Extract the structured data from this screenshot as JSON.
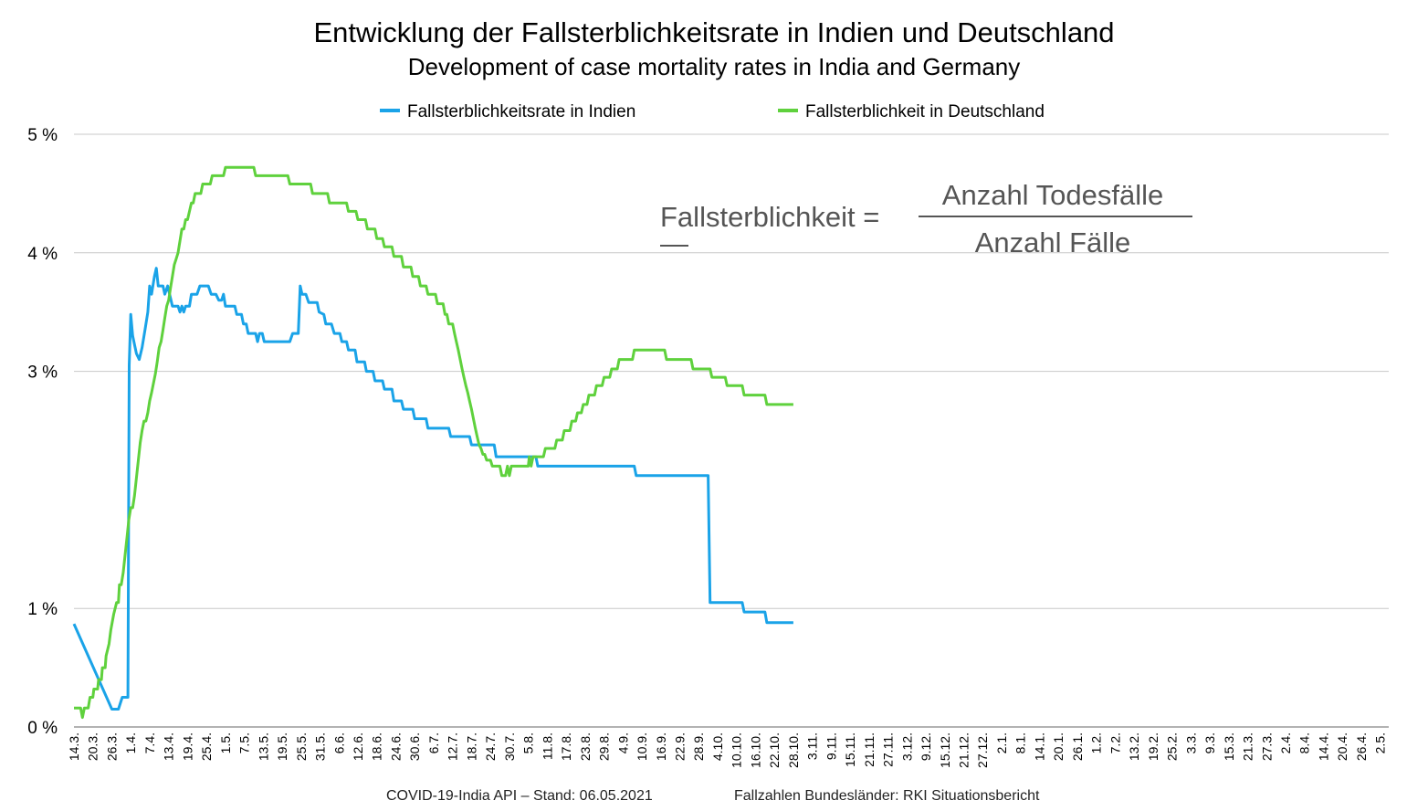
{
  "title": "Entwicklung der Fallsterblichkeitsrate in Indien und Deutschland",
  "subtitle": "Development of case mortality rates in India and Germany",
  "legend": [
    {
      "label": "Fallsterblichkeitsrate in Indien",
      "color": "#1aa3e8"
    },
    {
      "label": "Fallsterblichkeit in Deutschland",
      "color": "#5fd13d"
    }
  ],
  "formula": {
    "lhs": "Fallsterblichkeit =",
    "dash": "—",
    "numerator": "Anzahl Todesfälle",
    "denominator": "Anzahl Fälle"
  },
  "footer": {
    "left": "COVID-19-India API – Stand: 06.05.2021",
    "right": "Fallzahlen Bundesländer: RKI Situationsbericht"
  },
  "chart_data": {
    "type": "line",
    "title": "Entwicklung der Fallsterblichkeitsrate in Indien und Deutschland",
    "subtitle": "Development of case mortality rates in India and Germany",
    "xlabel": "",
    "ylabel": "",
    "ylim": [
      0,
      5
    ],
    "yticks": [
      0,
      1,
      3,
      4,
      5
    ],
    "ytick_labels": [
      "0 %",
      "1 %",
      "3 %",
      "4 %",
      "5 %"
    ],
    "grid": true,
    "legend_position": "top",
    "x_ticks": [
      "14.3.",
      "20.3.",
      "26.3.",
      "1.4.",
      "7.4.",
      "13.4.",
      "19.4.",
      "25.4.",
      "1.5.",
      "7.5.",
      "13.5.",
      "19.5.",
      "25.5.",
      "31.5.",
      "6.6.",
      "12.6.",
      "18.6.",
      "24.6.",
      "30.6.",
      "6.7.",
      "12.7.",
      "18.7.",
      "24.7.",
      "30.7.",
      "5.8.",
      "11.8.",
      "17.8.",
      "23.8.",
      "29.8.",
      "4.9.",
      "10.9.",
      "16.9.",
      "22.9.",
      "28.9.",
      "4.10.",
      "10.10.",
      "16.10.",
      "22.10.",
      "28.10.",
      "3.11.",
      "9.11.",
      "15.11.",
      "21.11.",
      "27.11.",
      "3.12.",
      "9.12.",
      "15.12.",
      "21.12.",
      "27.12.",
      "2.1.",
      "8.1.",
      "14.1.",
      "20.1.",
      "26.1.",
      "1.2.",
      "7.2.",
      "13.2.",
      "19.2.",
      "25.2.",
      "3.3.",
      "9.3.",
      "15.3.",
      "21.3.",
      "27.3.",
      "2.4.",
      "8.4.",
      "14.4.",
      "20.4.",
      "26.4.",
      "2.5."
    ],
    "series": [
      {
        "name": "Fallsterblichkeitsrate in Indien",
        "color": "#1aa3e8",
        "points": [
          [
            0,
            0.87
          ],
          [
            2,
            0.15
          ],
          [
            2.35,
            0.15
          ],
          [
            2.55,
            0.25
          ],
          [
            2.85,
            0.25
          ],
          [
            2.92,
            3.05
          ],
          [
            3.0,
            3.48
          ],
          [
            3.1,
            3.3
          ],
          [
            3.3,
            3.15
          ],
          [
            3.45,
            3.1
          ],
          [
            3.6,
            3.2
          ],
          [
            3.75,
            3.35
          ],
          [
            3.9,
            3.5
          ],
          [
            4.0,
            3.72
          ],
          [
            4.1,
            3.65
          ],
          [
            4.25,
            3.8
          ],
          [
            4.35,
            3.87
          ],
          [
            4.45,
            3.72
          ],
          [
            4.7,
            3.72
          ],
          [
            4.8,
            3.65
          ],
          [
            4.95,
            3.72
          ],
          [
            5.1,
            3.62
          ],
          [
            5.2,
            3.55
          ],
          [
            5.5,
            3.55
          ],
          [
            5.6,
            3.5
          ],
          [
            5.7,
            3.55
          ],
          [
            5.8,
            3.5
          ],
          [
            5.9,
            3.55
          ],
          [
            6.1,
            3.55
          ],
          [
            6.2,
            3.65
          ],
          [
            6.5,
            3.65
          ],
          [
            6.65,
            3.72
          ],
          [
            7.1,
            3.72
          ],
          [
            7.25,
            3.65
          ],
          [
            7.5,
            3.65
          ],
          [
            7.65,
            3.6
          ],
          [
            7.8,
            3.6
          ],
          [
            7.9,
            3.65
          ],
          [
            8.0,
            3.55
          ],
          [
            8.5,
            3.55
          ],
          [
            8.6,
            3.48
          ],
          [
            8.85,
            3.48
          ],
          [
            8.95,
            3.4
          ],
          [
            9.1,
            3.4
          ],
          [
            9.2,
            3.32
          ],
          [
            9.6,
            3.32
          ],
          [
            9.7,
            3.25
          ],
          [
            9.8,
            3.32
          ],
          [
            9.95,
            3.32
          ],
          [
            10.05,
            3.25
          ],
          [
            11.4,
            3.25
          ],
          [
            11.55,
            3.32
          ],
          [
            11.85,
            3.32
          ],
          [
            11.95,
            3.72
          ],
          [
            12.05,
            3.65
          ],
          [
            12.25,
            3.65
          ],
          [
            12.4,
            3.58
          ],
          [
            12.85,
            3.58
          ],
          [
            12.95,
            3.5
          ],
          [
            13.2,
            3.48
          ],
          [
            13.3,
            3.4
          ],
          [
            13.6,
            3.4
          ],
          [
            13.75,
            3.32
          ],
          [
            14.05,
            3.32
          ],
          [
            14.15,
            3.25
          ],
          [
            14.4,
            3.25
          ],
          [
            14.5,
            3.18
          ],
          [
            14.85,
            3.18
          ],
          [
            14.95,
            3.08
          ],
          [
            15.35,
            3.08
          ],
          [
            15.45,
            3.0
          ],
          [
            15.8,
            3.0
          ],
          [
            15.9,
            2.92
          ],
          [
            16.3,
            2.92
          ],
          [
            16.4,
            2.85
          ],
          [
            16.8,
            2.85
          ],
          [
            16.9,
            2.75
          ],
          [
            17.3,
            2.75
          ],
          [
            17.4,
            2.68
          ],
          [
            17.9,
            2.68
          ],
          [
            18.0,
            2.6
          ],
          [
            18.6,
            2.6
          ],
          [
            18.7,
            2.52
          ],
          [
            19.8,
            2.52
          ],
          [
            19.9,
            2.45
          ],
          [
            20.9,
            2.45
          ],
          [
            21.0,
            2.38
          ],
          [
            22.2,
            2.38
          ],
          [
            22.3,
            2.28
          ],
          [
            24.4,
            2.28
          ],
          [
            24.5,
            2.2
          ],
          [
            29.6,
            2.2
          ],
          [
            29.7,
            2.12
          ],
          [
            33.5,
            2.12
          ],
          [
            33.6,
            1.05
          ],
          [
            35.3,
            1.05
          ],
          [
            35.4,
            0.97
          ],
          [
            36.5,
            0.97
          ],
          [
            36.6,
            0.88
          ],
          [
            38.0,
            0.88
          ]
        ]
      },
      {
        "name": "Fallsterblichkeit in Deutschland",
        "color": "#5fd13d",
        "points": [
          [
            0,
            0.16
          ],
          [
            0.35,
            0.16
          ],
          [
            0.45,
            0.08
          ],
          [
            0.55,
            0.16
          ],
          [
            0.75,
            0.16
          ],
          [
            0.85,
            0.25
          ],
          [
            1.0,
            0.25
          ],
          [
            1.05,
            0.32
          ],
          [
            1.25,
            0.32
          ],
          [
            1.3,
            0.4
          ],
          [
            1.45,
            0.4
          ],
          [
            1.5,
            0.5
          ],
          [
            1.65,
            0.5
          ],
          [
            1.7,
            0.6
          ],
          [
            1.85,
            0.7
          ],
          [
            1.95,
            0.82
          ],
          [
            2.1,
            0.95
          ],
          [
            2.25,
            1.05
          ],
          [
            2.35,
            1.05
          ],
          [
            2.4,
            1.2
          ],
          [
            2.5,
            1.2
          ],
          [
            2.6,
            1.3
          ],
          [
            2.7,
            1.45
          ],
          [
            2.8,
            1.6
          ],
          [
            2.9,
            1.75
          ],
          [
            3.0,
            1.85
          ],
          [
            3.1,
            1.85
          ],
          [
            3.2,
            1.95
          ],
          [
            3.3,
            2.1
          ],
          [
            3.4,
            2.25
          ],
          [
            3.5,
            2.4
          ],
          [
            3.6,
            2.5
          ],
          [
            3.7,
            2.58
          ],
          [
            3.8,
            2.58
          ],
          [
            3.9,
            2.65
          ],
          [
            4.0,
            2.75
          ],
          [
            4.1,
            2.82
          ],
          [
            4.2,
            2.9
          ],
          [
            4.3,
            2.98
          ],
          [
            4.4,
            3.08
          ],
          [
            4.5,
            3.2
          ],
          [
            4.6,
            3.25
          ],
          [
            4.7,
            3.35
          ],
          [
            4.8,
            3.45
          ],
          [
            4.9,
            3.55
          ],
          [
            5.0,
            3.6
          ],
          [
            5.1,
            3.7
          ],
          [
            5.2,
            3.8
          ],
          [
            5.3,
            3.9
          ],
          [
            5.4,
            3.95
          ],
          [
            5.5,
            4.0
          ],
          [
            5.6,
            4.1
          ],
          [
            5.7,
            4.2
          ],
          [
            5.8,
            4.2
          ],
          [
            5.9,
            4.28
          ],
          [
            6.0,
            4.28
          ],
          [
            6.1,
            4.35
          ],
          [
            6.2,
            4.42
          ],
          [
            6.3,
            4.42
          ],
          [
            6.4,
            4.5
          ],
          [
            6.7,
            4.5
          ],
          [
            6.8,
            4.58
          ],
          [
            7.2,
            4.58
          ],
          [
            7.3,
            4.65
          ],
          [
            7.9,
            4.65
          ],
          [
            8.0,
            4.72
          ],
          [
            9.5,
            4.72
          ],
          [
            9.6,
            4.65
          ],
          [
            11.3,
            4.65
          ],
          [
            11.4,
            4.58
          ],
          [
            12.5,
            4.58
          ],
          [
            12.6,
            4.5
          ],
          [
            13.4,
            4.5
          ],
          [
            13.5,
            4.42
          ],
          [
            14.4,
            4.42
          ],
          [
            14.5,
            4.35
          ],
          [
            14.9,
            4.35
          ],
          [
            15.0,
            4.28
          ],
          [
            15.4,
            4.28
          ],
          [
            15.5,
            4.2
          ],
          [
            15.9,
            4.2
          ],
          [
            16.0,
            4.12
          ],
          [
            16.3,
            4.12
          ],
          [
            16.4,
            4.05
          ],
          [
            16.8,
            4.05
          ],
          [
            16.9,
            3.97
          ],
          [
            17.3,
            3.97
          ],
          [
            17.4,
            3.88
          ],
          [
            17.8,
            3.88
          ],
          [
            17.9,
            3.8
          ],
          [
            18.2,
            3.8
          ],
          [
            18.3,
            3.72
          ],
          [
            18.6,
            3.72
          ],
          [
            18.7,
            3.65
          ],
          [
            19.1,
            3.65
          ],
          [
            19.2,
            3.57
          ],
          [
            19.5,
            3.57
          ],
          [
            19.6,
            3.48
          ],
          [
            19.7,
            3.48
          ],
          [
            19.8,
            3.4
          ],
          [
            20.0,
            3.4
          ],
          [
            20.1,
            3.32
          ],
          [
            20.2,
            3.25
          ],
          [
            20.3,
            3.18
          ],
          [
            20.4,
            3.1
          ],
          [
            20.5,
            3.02
          ],
          [
            20.6,
            2.95
          ],
          [
            20.7,
            2.88
          ],
          [
            20.8,
            2.82
          ],
          [
            20.9,
            2.75
          ],
          [
            21.0,
            2.68
          ],
          [
            21.1,
            2.6
          ],
          [
            21.2,
            2.52
          ],
          [
            21.3,
            2.45
          ],
          [
            21.4,
            2.38
          ],
          [
            21.5,
            2.35
          ],
          [
            21.6,
            2.3
          ],
          [
            21.7,
            2.3
          ],
          [
            21.8,
            2.25
          ],
          [
            22.0,
            2.25
          ],
          [
            22.1,
            2.2
          ],
          [
            22.5,
            2.2
          ],
          [
            22.6,
            2.12
          ],
          [
            22.8,
            2.12
          ],
          [
            22.9,
            2.2
          ],
          [
            23.0,
            2.12
          ],
          [
            23.1,
            2.2
          ],
          [
            24.0,
            2.2
          ],
          [
            24.05,
            2.28
          ],
          [
            24.15,
            2.2
          ],
          [
            24.25,
            2.28
          ],
          [
            24.8,
            2.28
          ],
          [
            24.9,
            2.35
          ],
          [
            25.4,
            2.35
          ],
          [
            25.5,
            2.42
          ],
          [
            25.8,
            2.42
          ],
          [
            25.9,
            2.5
          ],
          [
            26.2,
            2.5
          ],
          [
            26.3,
            2.58
          ],
          [
            26.5,
            2.58
          ],
          [
            26.6,
            2.65
          ],
          [
            26.8,
            2.65
          ],
          [
            26.9,
            2.72
          ],
          [
            27.1,
            2.72
          ],
          [
            27.2,
            2.8
          ],
          [
            27.5,
            2.8
          ],
          [
            27.6,
            2.88
          ],
          [
            27.9,
            2.88
          ],
          [
            28.0,
            2.95
          ],
          [
            28.3,
            2.95
          ],
          [
            28.4,
            3.02
          ],
          [
            28.7,
            3.02
          ],
          [
            28.8,
            3.1
          ],
          [
            29.5,
            3.1
          ],
          [
            29.6,
            3.18
          ],
          [
            31.2,
            3.18
          ],
          [
            31.3,
            3.1
          ],
          [
            32.6,
            3.1
          ],
          [
            32.7,
            3.02
          ],
          [
            33.6,
            3.02
          ],
          [
            33.7,
            2.95
          ],
          [
            34.4,
            2.95
          ],
          [
            34.5,
            2.88
          ],
          [
            35.3,
            2.88
          ],
          [
            35.4,
            2.8
          ],
          [
            36.5,
            2.8
          ],
          [
            36.6,
            2.72
          ],
          [
            38.0,
            2.72
          ]
        ]
      }
    ]
  }
}
